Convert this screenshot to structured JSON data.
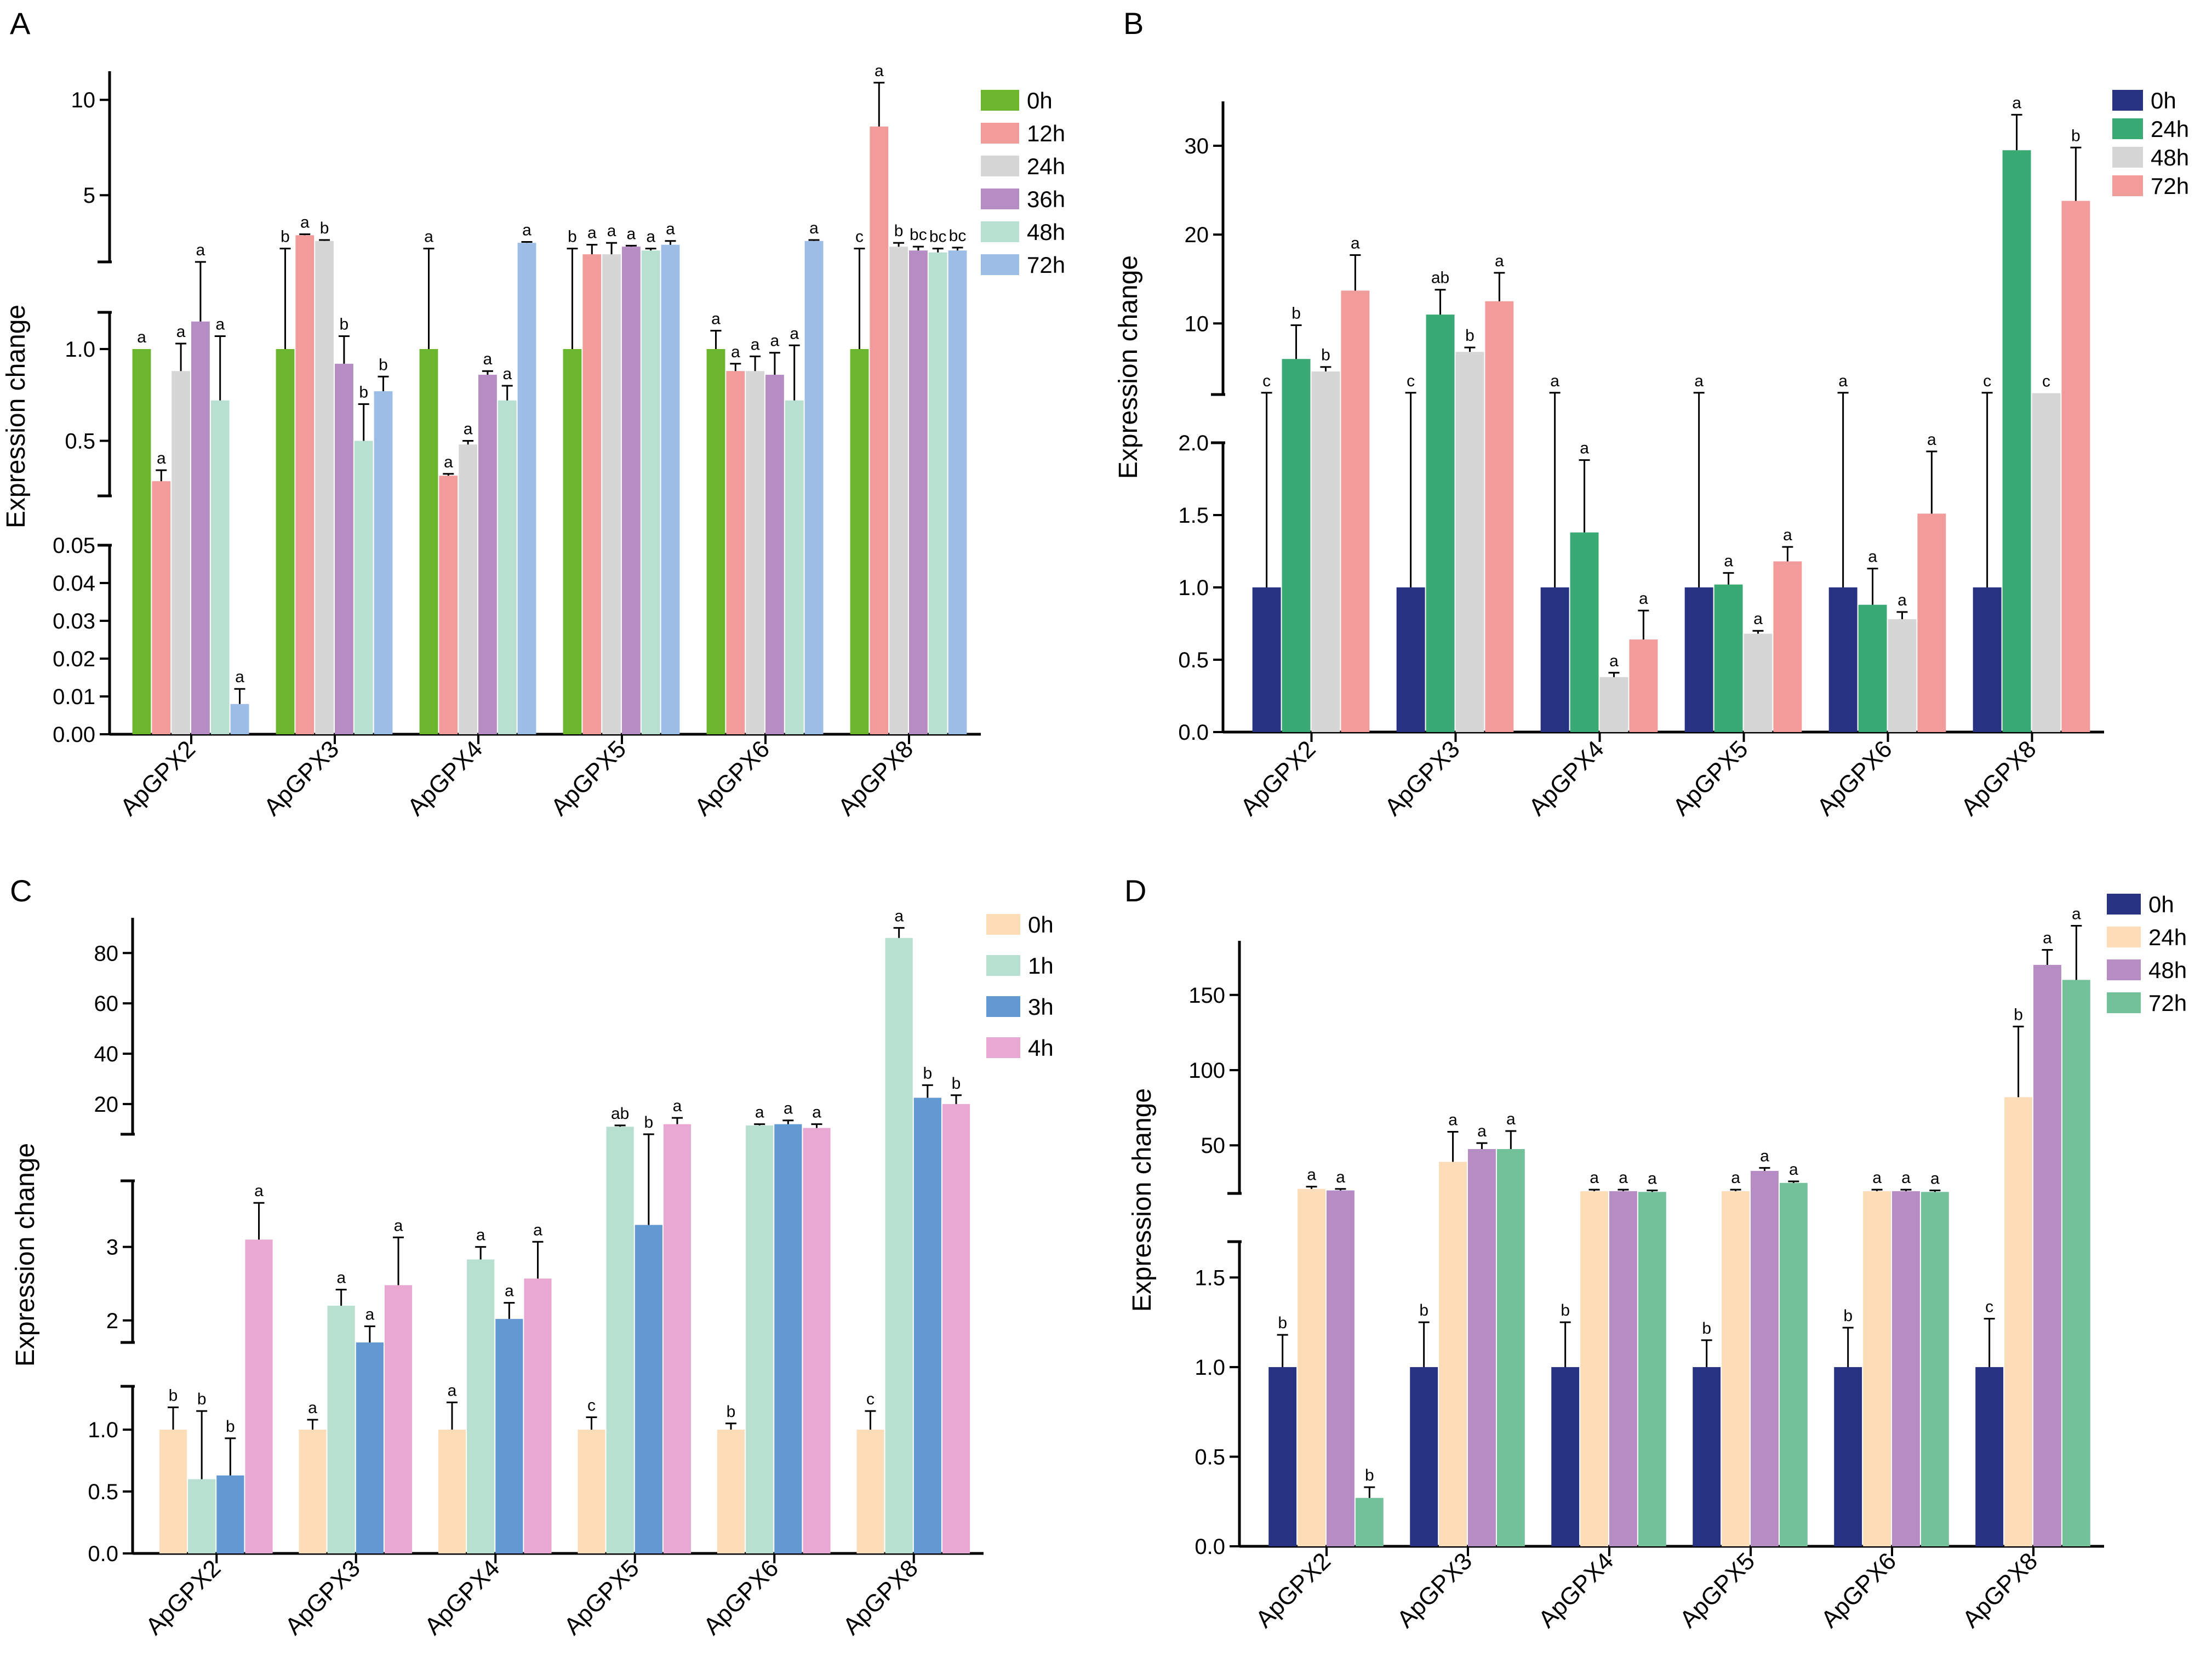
{
  "chart_data": [
    {
      "panel": "A",
      "type": "bar",
      "ylabel": "Expression change",
      "categories": [
        "ApGPX2",
        "ApGPX3",
        "ApGPX4",
        "ApGPX5",
        "ApGPX6",
        "ApGPX8"
      ],
      "axis_segments": [
        {
          "range": [
            0,
            0.05
          ],
          "ticks": [
            0,
            0.01,
            0.02,
            0.03,
            0.04,
            0.05
          ],
          "tick_labels": [
            "0.00",
            "0.01",
            "0.02",
            "0.03",
            "0.04",
            "0.05"
          ]
        },
        {
          "range": [
            0.2,
            1.2
          ],
          "ticks": [
            0.5,
            1.0
          ],
          "tick_labels": [
            "0.5",
            "1.0"
          ]
        },
        {
          "range": [
            1.5,
            11.5
          ],
          "ticks": [
            5,
            10
          ],
          "tick_labels": [
            "5",
            "10"
          ]
        }
      ],
      "legend_position": "top-right",
      "series": [
        {
          "name": "0h",
          "color": "#6cb62e",
          "values": [
            1.0,
            1.0,
            1.0,
            1.0,
            1.0,
            1.0
          ],
          "errors": [
            0,
            1.2,
            1.2,
            1.2,
            0.1,
            1.2
          ],
          "labels": [
            "a",
            "b",
            "a",
            "b",
            "a",
            "c"
          ]
        },
        {
          "name": "12h",
          "color": "#f29b9b",
          "values": [
            0.28,
            2.9,
            0.31,
            1.9,
            0.88,
            8.6
          ],
          "errors": [
            0.06,
            0.05,
            0.01,
            0.5,
            0.04,
            2.3
          ],
          "labels": [
            "a",
            "a",
            "a",
            "a",
            "a",
            "a"
          ]
        },
        {
          "name": "24h",
          "color": "#d6d6d6",
          "values": [
            0.88,
            2.6,
            0.48,
            1.9,
            0.88,
            2.3
          ],
          "errors": [
            0.15,
            0.05,
            0.02,
            0.6,
            0.08,
            0.2
          ],
          "labels": [
            "a",
            "b",
            "a",
            "a",
            "a",
            "b"
          ]
        },
        {
          "name": "36h",
          "color": "#b68cc5",
          "values": [
            1.15,
            0.92,
            0.86,
            2.3,
            0.86,
            2.1
          ],
          "errors": [
            0.35,
            0.15,
            0.02,
            0.05,
            0.12,
            0.2
          ],
          "labels": [
            "a",
            "b",
            "a",
            "a",
            "a",
            "bc"
          ]
        },
        {
          "name": "48h",
          "color": "#b8e0d0",
          "values": [
            0.72,
            0.5,
            0.72,
            2.1,
            0.72,
            2.0
          ],
          "errors": [
            0.35,
            0.2,
            0.08,
            0.1,
            0.3,
            0.2
          ],
          "labels": [
            "a",
            "b",
            "a",
            "a",
            "a",
            "bc"
          ]
        },
        {
          "name": "72h",
          "color": "#9bbde6",
          "values": [
            0.008,
            0.77,
            2.5,
            2.4,
            2.6,
            2.1
          ],
          "errors": [
            0.004,
            0.08,
            0.05,
            0.2,
            0.05,
            0.15
          ],
          "labels": [
            "a",
            "b",
            "a",
            "a",
            "a",
            "bc"
          ]
        }
      ]
    },
    {
      "panel": "B",
      "type": "bar",
      "ylabel": "Expression change",
      "categories": [
        "ApGPX2",
        "ApGPX3",
        "ApGPX4",
        "ApGPX5",
        "ApGPX6",
        "ApGPX8"
      ],
      "axis_segments": [
        {
          "range": [
            0,
            2.0
          ],
          "ticks": [
            0,
            0.5,
            1.0,
            1.5,
            2.0
          ],
          "tick_labels": [
            "0.0",
            "0.5",
            "1.0",
            "1.5",
            "2.0"
          ]
        },
        {
          "range": [
            2.0,
            35
          ],
          "ticks": [
            10,
            20,
            30
          ],
          "tick_labels": [
            "10",
            "20",
            "30"
          ]
        }
      ],
      "legend_position": "top-right",
      "series": [
        {
          "name": "0h",
          "color": "#283282",
          "values": [
            1.0,
            1.0,
            1.0,
            1.0,
            1.0,
            1.0
          ],
          "errors": [
            1.2,
            1.2,
            1.2,
            1.2,
            1.2,
            1.2
          ],
          "labels": [
            "c",
            "c",
            "a",
            "a",
            "a",
            "c"
          ]
        },
        {
          "name": "24h",
          "color": "#3aaa74",
          "values": [
            6.0,
            11.0,
            1.38,
            1.02,
            0.88,
            29.5
          ],
          "errors": [
            3.8,
            2.8,
            0.5,
            0.08,
            0.25,
            4.0
          ],
          "labels": [
            "b",
            "ab",
            "a",
            "a",
            "a",
            "a"
          ]
        },
        {
          "name": "48h",
          "color": "#d6d6d6",
          "values": [
            4.6,
            6.8,
            0.38,
            0.68,
            0.78,
            2.15
          ],
          "errors": [
            0.5,
            0.5,
            0.03,
            0.02,
            0.05,
            0
          ],
          "labels": [
            "b",
            "b",
            "a",
            "a",
            "a",
            "c"
          ]
        },
        {
          "name": "72h",
          "color": "#f29b9b",
          "values": [
            13.7,
            12.5,
            0.64,
            1.18,
            1.51,
            23.8
          ],
          "errors": [
            4.0,
            3.2,
            0.2,
            0.1,
            0.43,
            6.0
          ],
          "labels": [
            "a",
            "a",
            "a",
            "a",
            "a",
            "b"
          ]
        }
      ]
    },
    {
      "panel": "C",
      "type": "bar",
      "ylabel": "Expression change",
      "categories": [
        "ApGPX2",
        "ApGPX3",
        "ApGPX4",
        "ApGPX5",
        "ApGPX6",
        "ApGPX8"
      ],
      "axis_segments": [
        {
          "range": [
            0,
            1.35
          ],
          "ticks": [
            0,
            0.5,
            1.0
          ],
          "tick_labels": [
            "0.0",
            "0.5",
            "1.0"
          ]
        },
        {
          "range": [
            1.7,
            3.9
          ],
          "ticks": [
            2,
            3
          ],
          "tick_labels": [
            "2",
            "3"
          ]
        },
        {
          "range": [
            8,
            94
          ],
          "ticks": [
            20,
            40,
            60,
            80
          ],
          "tick_labels": [
            "20",
            "40",
            "60",
            "80"
          ]
        }
      ],
      "legend_position": "top-right",
      "series": [
        {
          "name": "0h",
          "color": "#fddcb8",
          "values": [
            1.0,
            1.0,
            1.0,
            1.0,
            1.0,
            1.0
          ],
          "errors": [
            0.18,
            0.08,
            0.22,
            0.1,
            0.05,
            0.15
          ],
          "labels": [
            "b",
            "a",
            "a",
            "c",
            "b",
            "c"
          ]
        },
        {
          "name": "1h",
          "color": "#b8e0d0",
          "values": [
            0.6,
            2.2,
            2.83,
            11.0,
            11.5,
            86
          ],
          "errors": [
            0.55,
            0.22,
            0.17,
            0.5,
            0.5,
            4
          ],
          "labels": [
            "b",
            "a",
            "a",
            "ab",
            "a",
            "a"
          ]
        },
        {
          "name": "3h",
          "color": "#6399d3",
          "values": [
            0.63,
            1.62,
            2.02,
            3.3,
            12.0,
            22.5
          ],
          "errors": [
            0.3,
            0.3,
            0.22,
            0.8,
            1.5,
            5
          ],
          "labels": [
            "b",
            "a",
            "a",
            "b",
            "a",
            "b"
          ]
        },
        {
          "name": "4h",
          "color": "#e9a8d2",
          "values": [
            3.1,
            2.48,
            2.57,
            12.0,
            10.5,
            20.0
          ],
          "errors": [
            0.5,
            0.65,
            0.5,
            2.5,
            1.5,
            3.5
          ],
          "labels": [
            "a",
            "a",
            "a",
            "a",
            "a",
            "b"
          ]
        }
      ]
    },
    {
      "panel": "D",
      "type": "bar",
      "ylabel": "Expression change",
      "categories": [
        "ApGPX2",
        "ApGPX3",
        "ApGPX4",
        "ApGPX5",
        "ApGPX6",
        "ApGPX8"
      ],
      "axis_segments": [
        {
          "range": [
            0,
            1.7
          ],
          "ticks": [
            0,
            0.5,
            1.0,
            1.5
          ],
          "tick_labels": [
            "0.0",
            "0.5",
            "1.0",
            "1.5"
          ]
        },
        {
          "range": [
            18,
            186
          ],
          "ticks": [
            50,
            100,
            150
          ],
          "tick_labels": [
            "50",
            "100",
            "150"
          ]
        }
      ],
      "legend_position": "top-right",
      "series": [
        {
          "name": "0h",
          "color": "#283282",
          "values": [
            1.0,
            1.0,
            1.0,
            1.0,
            1.0,
            1.0
          ],
          "errors": [
            0.18,
            0.25,
            0.25,
            0.15,
            0.22,
            0.27
          ],
          "labels": [
            "b",
            "b",
            "b",
            "b",
            "b",
            "c"
          ]
        },
        {
          "name": "24h",
          "color": "#fddcb8",
          "values": [
            21.0,
            39.0,
            19.5,
            19.5,
            19.5,
            82
          ],
          "errors": [
            1.5,
            20,
            1,
            1,
            1,
            47
          ],
          "labels": [
            "a",
            "a",
            "a",
            "a",
            "a",
            "b"
          ]
        },
        {
          "name": "48h",
          "color": "#b68cc5",
          "values": [
            20.0,
            47.5,
            19.5,
            33.0,
            19.5,
            170
          ],
          "errors": [
            1,
            4,
            1,
            2,
            1,
            10
          ],
          "labels": [
            "a",
            "a",
            "a",
            "a",
            "a",
            "a"
          ]
        },
        {
          "name": "72h",
          "color": "#72c19a",
          "values": [
            0.27,
            47.5,
            19.0,
            25.0,
            19.0,
            160
          ],
          "errors": [
            0.06,
            12,
            1,
            1,
            1,
            36
          ],
          "labels": [
            "b",
            "a",
            "a",
            "a",
            "a",
            "a"
          ]
        }
      ]
    }
  ]
}
